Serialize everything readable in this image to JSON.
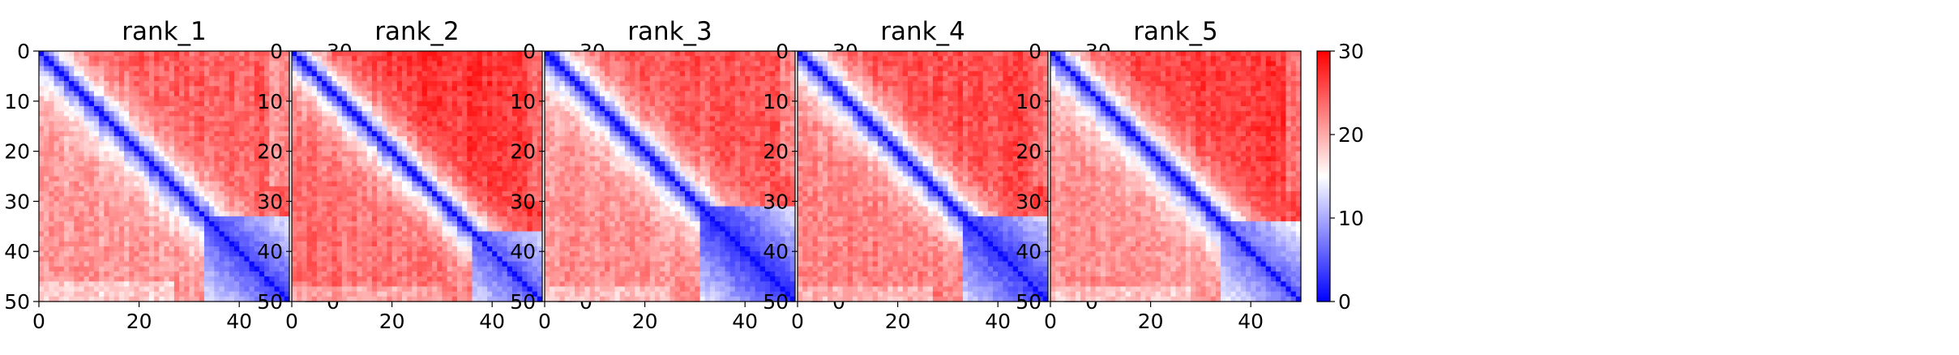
{
  "chart_data": [
    {
      "type": "heatmap",
      "title": "rank_1",
      "xlim": [
        0,
        50
      ],
      "ylim": [
        50,
        0
      ],
      "size": 50,
      "x_ticks": [
        0,
        20,
        40
      ],
      "y_ticks": [
        0,
        10,
        20,
        30,
        40,
        50
      ],
      "colorbar": {
        "min": 0,
        "max": 30,
        "ticks": [
          0,
          10,
          20,
          30
        ],
        "cmap": "bwr"
      },
      "pattern": {
        "block_start": 33,
        "upper_far": 24.5,
        "lower_far": 21.0,
        "block_level": 4.0,
        "diag_width": 4.2,
        "bottom_edge": 46
      }
    },
    {
      "type": "heatmap",
      "title": "rank_2",
      "xlim": [
        0,
        50
      ],
      "ylim": [
        50,
        0
      ],
      "size": 50,
      "x_ticks": [
        0,
        20,
        40
      ],
      "y_ticks": [
        0,
        10,
        20,
        30,
        40,
        50
      ],
      "colorbar": {
        "min": 0,
        "max": 30,
        "ticks": [
          0,
          10,
          20,
          30
        ],
        "cmap": "bwr"
      },
      "pattern": {
        "block_start": 36,
        "upper_far": 27.0,
        "lower_far": 23.5,
        "block_level": 5.0,
        "diag_width": 4.0,
        "bottom_edge": 47
      }
    },
    {
      "type": "heatmap",
      "title": "rank_3",
      "xlim": [
        0,
        50
      ],
      "ylim": [
        50,
        0
      ],
      "size": 50,
      "x_ticks": [
        0,
        20,
        40
      ],
      "y_ticks": [
        0,
        10,
        20,
        30,
        40,
        50
      ],
      "colorbar": {
        "min": 0,
        "max": 30,
        "ticks": [
          0,
          10,
          20,
          30
        ],
        "cmap": "bwr"
      },
      "pattern": {
        "block_start": 31,
        "upper_far": 25.0,
        "lower_far": 21.5,
        "block_level": 2.5,
        "diag_width": 4.2,
        "bottom_edge": 47
      }
    },
    {
      "type": "heatmap",
      "title": "rank_4",
      "xlim": [
        0,
        50
      ],
      "ylim": [
        50,
        0
      ],
      "size": 50,
      "x_ticks": [
        0,
        20,
        40
      ],
      "y_ticks": [
        0,
        10,
        20,
        30,
        40,
        50
      ],
      "colorbar": {
        "min": 0,
        "max": 30,
        "ticks": [
          0,
          10,
          20,
          30
        ],
        "cmap": "bwr"
      },
      "pattern": {
        "block_start": 33,
        "upper_far": 25.5,
        "lower_far": 22.5,
        "block_level": 3.0,
        "diag_width": 4.0,
        "bottom_edge": 47
      }
    },
    {
      "type": "heatmap",
      "title": "rank_5",
      "xlim": [
        0,
        50
      ],
      "ylim": [
        50,
        0
      ],
      "size": 50,
      "x_ticks": [
        0,
        20,
        40
      ],
      "y_ticks": [
        0,
        10,
        20,
        30,
        40,
        50
      ],
      "colorbar": {
        "min": 0,
        "max": 30,
        "ticks": [
          0,
          10,
          20,
          30
        ],
        "cmap": "bwr"
      },
      "pattern": {
        "block_start": 34,
        "upper_far": 26.5,
        "lower_far": 21.5,
        "block_level": 5.5,
        "diag_width": 4.3,
        "bottom_edge": 47
      }
    }
  ]
}
